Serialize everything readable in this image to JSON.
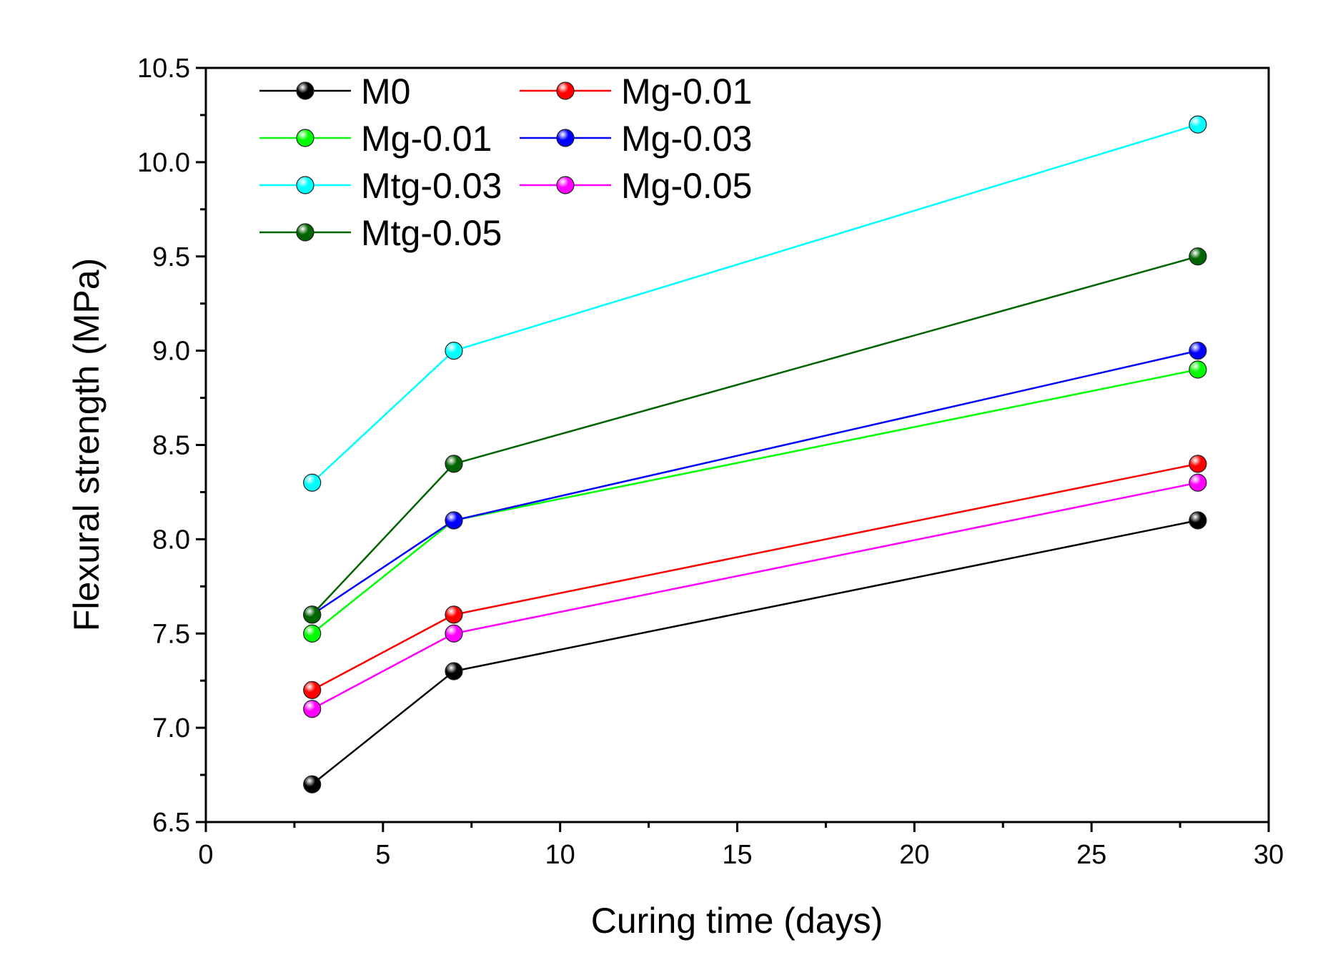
{
  "chart_data": {
    "type": "line",
    "title": "",
    "xlabel": "Curing time (days)",
    "ylabel": "Flexural strength (MPa)",
    "xlim": [
      0,
      30
    ],
    "ylim": [
      6.5,
      10.5
    ],
    "xticks": [
      0,
      5,
      10,
      15,
      20,
      25,
      30
    ],
    "xtick_labels": [
      "0",
      "5",
      "10",
      "15",
      "20",
      "25",
      "30"
    ],
    "yticks": [
      6.5,
      7.0,
      7.5,
      8.0,
      8.5,
      9.0,
      9.5,
      10.0,
      10.5
    ],
    "ytick_labels": [
      "6.5",
      "7.0",
      "7.5",
      "8.0",
      "8.5",
      "9.0",
      "9.5",
      "10.0",
      "10.5"
    ],
    "grid": false,
    "legend_position": "top-left",
    "x": [
      3,
      7,
      28
    ],
    "series": [
      {
        "name": "M0",
        "color": "#000000",
        "values": [
          6.7,
          7.3,
          8.1
        ]
      },
      {
        "name": "Mg-0.01",
        "color": "#ff0000",
        "values": [
          7.2,
          7.6,
          8.4
        ]
      },
      {
        "name": "Mg-0.01",
        "color": "#00ff00",
        "values": [
          7.5,
          8.1,
          8.9
        ]
      },
      {
        "name": "Mg-0.03",
        "color": "#0000ff",
        "values": [
          7.6,
          8.1,
          9.0
        ]
      },
      {
        "name": "Mtg-0.03",
        "color": "#00ffff",
        "values": [
          8.3,
          9.0,
          10.2
        ]
      },
      {
        "name": "Mg-0.05",
        "color": "#ff00ff",
        "values": [
          7.1,
          7.5,
          8.3
        ]
      },
      {
        "name": "Mtg-0.05",
        "color": "#006400",
        "values": [
          7.6,
          8.4,
          9.5
        ]
      }
    ]
  }
}
